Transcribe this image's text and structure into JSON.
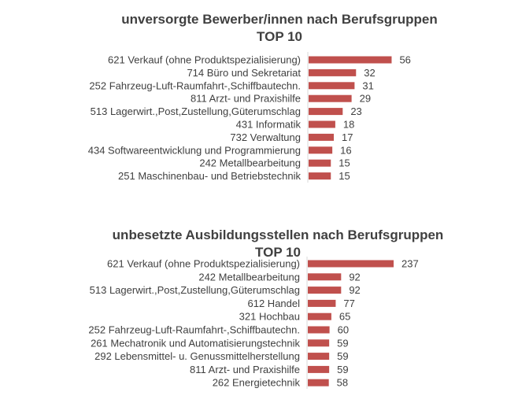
{
  "chart_data": [
    {
      "type": "bar",
      "orientation": "horizontal",
      "title": "unversorgte Bewerber/innen nach Berufsgruppen",
      "subtitle": "TOP 10",
      "bar_color": "#c0504d",
      "categories": [
        "621 Verkauf (ohne Produktspezialisierung)",
        "714 Büro und Sekretariat",
        "252 Fahrzeug-Luft-Raumfahrt-,Schiffbautechn.",
        "811 Arzt- und Praxishilfe",
        "513 Lagerwirt.,Post,Zustellung,Güterumschlag",
        "431 Informatik",
        "732 Verwaltung",
        "434 Softwareentwicklung und Programmierung",
        "242 Metallbearbeitung",
        "251 Maschinenbau- und Betriebstechnik"
      ],
      "values": [
        56,
        32,
        31,
        29,
        23,
        18,
        17,
        16,
        15,
        15
      ],
      "value_labels": [
        "56",
        "32",
        "31",
        "29",
        "23",
        "18",
        "17",
        "16",
        "15",
        "15"
      ],
      "xmax": 60
    },
    {
      "type": "bar",
      "orientation": "horizontal",
      "title": "unbesetzte Ausbildungsstellen nach Berufsgruppen",
      "subtitle": "TOP 10",
      "bar_color": "#c0504d",
      "categories": [
        "621 Verkauf (ohne Produktspezialisierung)",
        "242 Metallbearbeitung",
        "513 Lagerwirt.,Post,Zustellung,Güterumschlag",
        "612 Handel",
        "321 Hochbau",
        "252 Fahrzeug-Luft-Raumfahrt-,Schiffbautechn.",
        "261 Mechatronik und Automatisierungstechnik",
        "292 Lebensmittel- u. Genussmittelherstellung",
        "811 Arzt- und Praxishilfe",
        "262 Energietechnik"
      ],
      "values": [
        237,
        92,
        92,
        77,
        65,
        60,
        59,
        59,
        59,
        58
      ],
      "value_labels": [
        "237",
        "92",
        "92",
        "77",
        "65",
        "60",
        "59",
        "59",
        "59",
        "58"
      ],
      "xmax": 250
    }
  ]
}
